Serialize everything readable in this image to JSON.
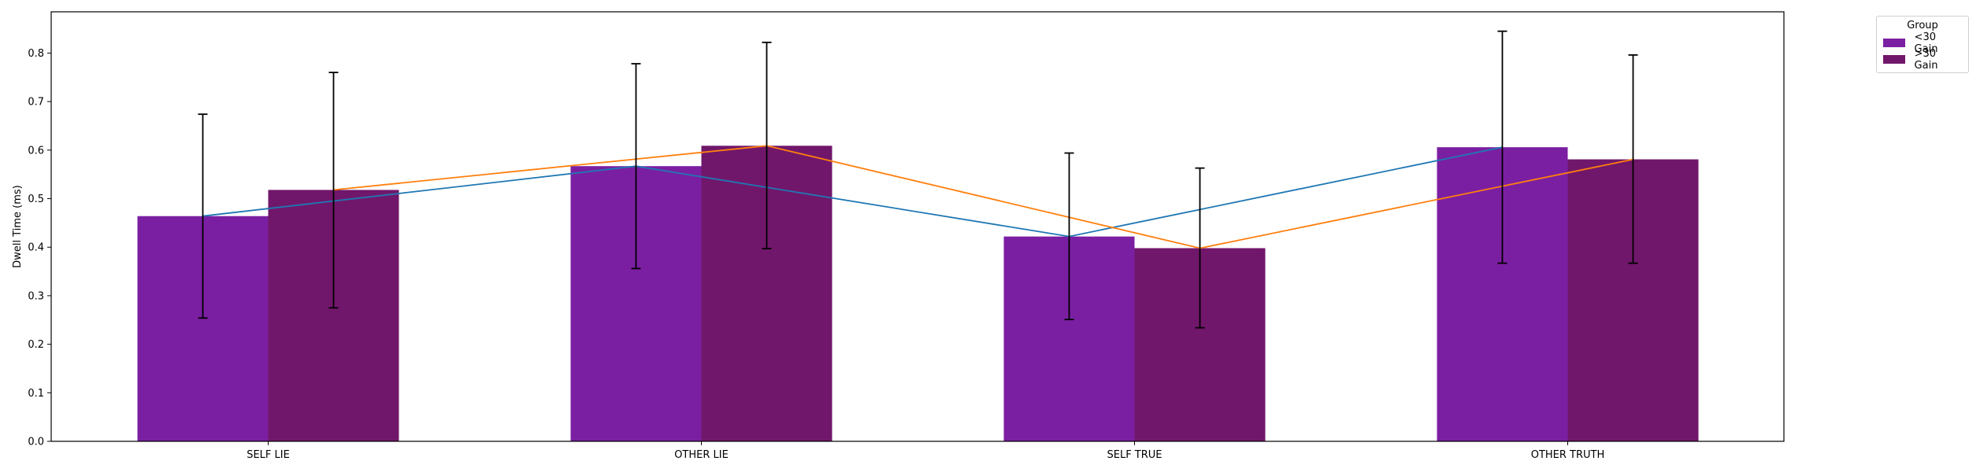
{
  "chart_data": {
    "type": "bar",
    "title": "",
    "xlabel": "",
    "ylabel": "Dwell Time (ms)",
    "categories": [
      "SELF LIE",
      "OTHER LIE",
      "SELF TRUE",
      "OTHER TRUTH"
    ],
    "series": [
      {
        "name": "<30 Gain",
        "color": "#7b1fa2",
        "line_color": "#1f77b4",
        "values": [
          0.464,
          0.567,
          0.422,
          0.606
        ],
        "err_low": [
          0.254,
          0.356,
          0.251,
          0.367
        ],
        "err_high": [
          0.674,
          0.778,
          0.594,
          0.845
        ]
      },
      {
        "name": ">30 Gain",
        "color": "#71176b",
        "line_color": "#ff7f0e",
        "values": [
          0.518,
          0.609,
          0.398,
          0.581
        ],
        "err_low": [
          0.275,
          0.397,
          0.234,
          0.367
        ],
        "err_high": [
          0.76,
          0.822,
          0.563,
          0.796
        ]
      }
    ],
    "ylim": [
      0,
      0.885
    ],
    "yticks": [
      "0.0",
      "0.1",
      "0.2",
      "0.3",
      "0.4",
      "0.5",
      "0.6",
      "0.7",
      "0.8"
    ],
    "grid": false,
    "legend": {
      "title": "Group",
      "placement": "outside-top-right"
    }
  }
}
